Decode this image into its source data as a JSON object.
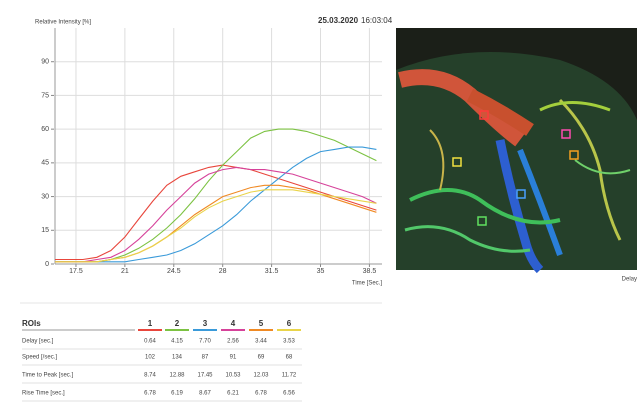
{
  "chart_data": {
    "type": "line",
    "ylabel": "Relative Intensity [%]",
    "xlabel": "Time [Sec.]",
    "date": "25.03.2020",
    "time": "16:03:04",
    "x": [
      16,
      17,
      18,
      19,
      20,
      21,
      22,
      23,
      24,
      25,
      26,
      27,
      28,
      29,
      30,
      31,
      32,
      33,
      34,
      35,
      36,
      37,
      38,
      39
    ],
    "series": [
      {
        "name": "1",
        "color": "#e8463c",
        "values": [
          2,
          2,
          2,
          3,
          6,
          12,
          20,
          28,
          35,
          39,
          41,
          43,
          44,
          43,
          42,
          40,
          38,
          36,
          34,
          32,
          30,
          28,
          26,
          24
        ]
      },
      {
        "name": "2",
        "color": "#7cc242",
        "values": [
          1,
          1,
          1,
          1,
          2,
          4,
          7,
          11,
          16,
          22,
          29,
          37,
          44,
          50,
          56,
          59,
          60,
          60,
          59,
          57,
          55,
          52,
          49,
          46
        ]
      },
      {
        "name": "3",
        "color": "#3a9ad9",
        "values": [
          1,
          1,
          1,
          1,
          1,
          1,
          2,
          3,
          4,
          6,
          9,
          13,
          17,
          22,
          28,
          33,
          38,
          43,
          47,
          50,
          51,
          52,
          52,
          51
        ]
      },
      {
        "name": "4",
        "color": "#d6429a",
        "values": [
          1,
          1,
          1,
          2,
          3,
          6,
          11,
          17,
          24,
          30,
          36,
          40,
          42,
          43,
          42,
          42,
          41,
          40,
          38,
          36,
          34,
          32,
          30,
          27
        ]
      },
      {
        "name": "5",
        "color": "#f08a24",
        "values": [
          1,
          1,
          1,
          1,
          2,
          3,
          5,
          8,
          12,
          17,
          22,
          26,
          30,
          32,
          34,
          35,
          35,
          34,
          33,
          31,
          29,
          27,
          25,
          23
        ]
      },
      {
        "name": "6",
        "color": "#e9d44a",
        "values": [
          1,
          1,
          1,
          1,
          2,
          3,
          5,
          8,
          12,
          16,
          21,
          25,
          28,
          30,
          32,
          33,
          33,
          33,
          32,
          31,
          30,
          29,
          28,
          27
        ]
      }
    ],
    "xlim": [
      16,
      39.4
    ],
    "ylim": [
      0,
      105
    ],
    "xticks": [
      17.5,
      21,
      24.5,
      28,
      31.5,
      35,
      38.5
    ],
    "yticks": [
      0,
      15,
      30,
      45,
      60,
      75,
      90
    ],
    "grid": true
  },
  "image": {
    "caption": "Delay"
  },
  "table": {
    "title": "ROIs",
    "columns": [
      "1",
      "2",
      "3",
      "4",
      "5",
      "6"
    ],
    "rows": [
      {
        "label": "Delay [sec.]",
        "cells": [
          "0.64",
          "4.15",
          "7.70",
          "2.56",
          "3.44",
          "3.53"
        ]
      },
      {
        "label": "Speed [/sec.]",
        "cells": [
          "102",
          "134",
          "87",
          "91",
          "69",
          "68"
        ]
      },
      {
        "label": "Time to Peak [sec.]",
        "cells": [
          "8.74",
          "12.88",
          "17.45",
          "10.53",
          "12.03",
          "11.72"
        ]
      },
      {
        "label": "Rise Time [sec.]",
        "cells": [
          "6.78",
          "6.19",
          "8.67",
          "6.21",
          "6.78",
          "6.56"
        ]
      }
    ]
  }
}
